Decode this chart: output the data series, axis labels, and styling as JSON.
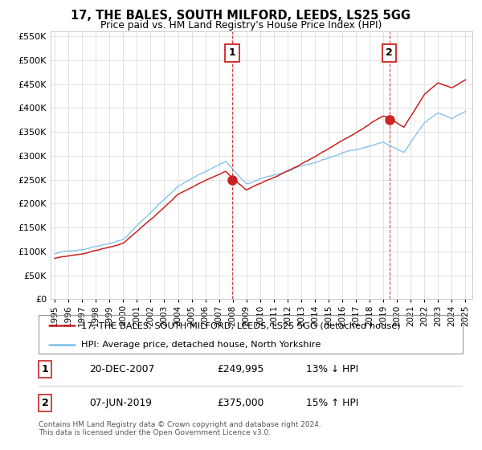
{
  "title": "17, THE BALES, SOUTH MILFORD, LEEDS, LS25 5GG",
  "subtitle": "Price paid vs. HM Land Registry's House Price Index (HPI)",
  "legend_line1": "17, THE BALES, SOUTH MILFORD, LEEDS, LS25 5GG (detached house)",
  "legend_line2": "HPI: Average price, detached house, North Yorkshire",
  "annotation1_label": "1",
  "annotation1_date": "20-DEC-2007",
  "annotation1_price": "£249,995",
  "annotation1_hpi": "13% ↓ HPI",
  "annotation2_label": "2",
  "annotation2_date": "07-JUN-2019",
  "annotation2_price": "£375,000",
  "annotation2_hpi": "15% ↑ HPI",
  "footer": "Contains HM Land Registry data © Crown copyright and database right 2024.\nThis data is licensed under the Open Government Licence v3.0.",
  "sale1_year": 2007.97,
  "sale1_value": 249995,
  "sale2_year": 2019.44,
  "sale2_value": 375000,
  "hpi_color": "#7bbfe8",
  "sale_color": "#cc2222",
  "vline_color": "#cc2222",
  "dot_color": "#cc2222",
  "ylim": [
    0,
    560000
  ],
  "xlim_start": 1994.7,
  "xlim_end": 2025.5,
  "background_color": "#ffffff",
  "grid_color": "#dddddd"
}
